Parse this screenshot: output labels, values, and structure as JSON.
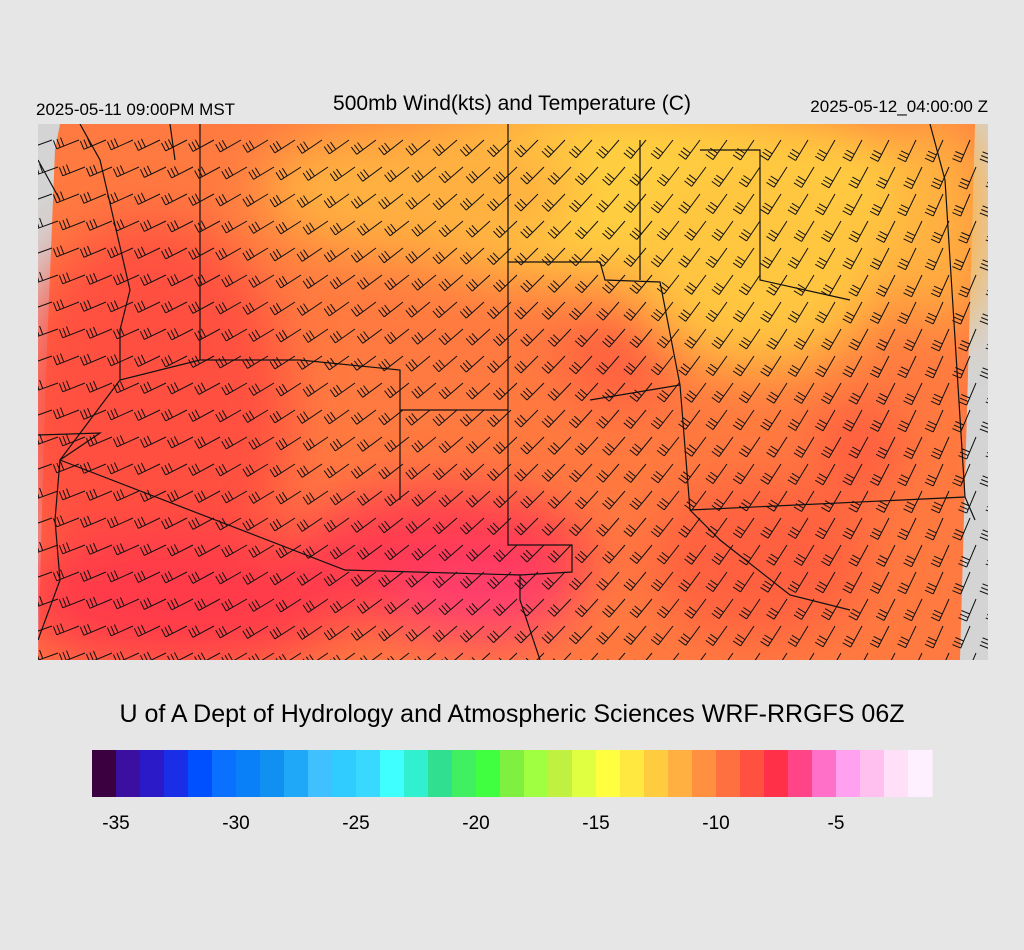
{
  "header": {
    "left": "2025-05-11 09:00PM MST",
    "title": "500mb Wind(kts) and Temperature (C)",
    "right": "2025-05-12_04:00:00 Z"
  },
  "credit": "U of A Dept of Hydrology and Atmospheric Sciences WRF-RRGFS 06Z",
  "colorbar": {
    "range": [
      -36,
      -1
    ],
    "ticks": [
      -35,
      -30,
      -25,
      -20,
      -15,
      -10,
      -5
    ],
    "colors": [
      "#3a0040",
      "#3b0fa0",
      "#2a1ac8",
      "#1a2ee8",
      "#0050ff",
      "#0a70ff",
      "#0a80f8",
      "#1090f0",
      "#20a8f8",
      "#40c0ff",
      "#30ccff",
      "#38d8ff",
      "#40ffff",
      "#30f0d0",
      "#30e090",
      "#40f060",
      "#40ff40",
      "#80f040",
      "#a0ff40",
      "#c0f040",
      "#e0ff40",
      "#ffff40",
      "#ffe840",
      "#ffcc40",
      "#ffb040",
      "#ff9040",
      "#ff7040",
      "#ff5040",
      "#ff3048",
      "#ff4488",
      "#ff70c8",
      "#ffa0f0",
      "#ffc0f0",
      "#ffe0f8",
      "#fff0ff"
    ]
  }
}
